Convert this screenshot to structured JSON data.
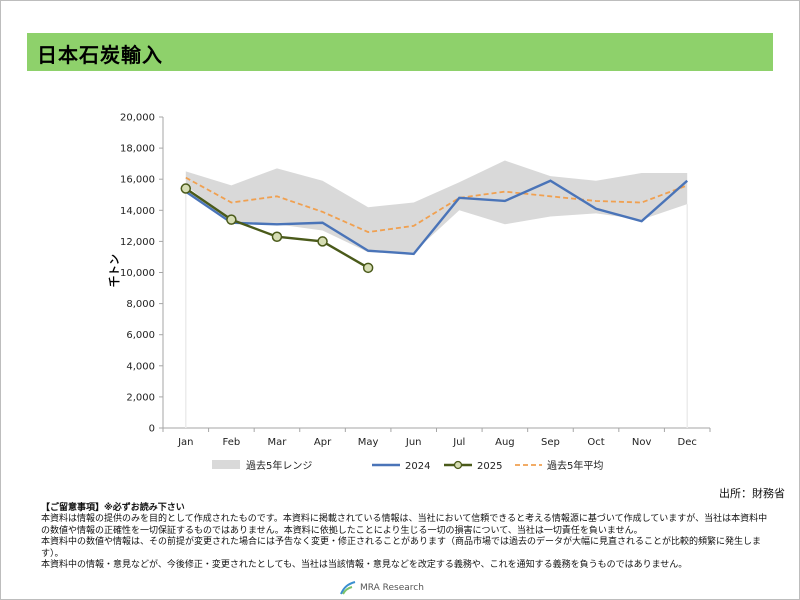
{
  "header": {
    "title": "日本石炭輸入"
  },
  "chart_data": {
    "type": "line",
    "title": "",
    "xlabel": "",
    "ylabel": "千トン",
    "ylim": [
      0,
      20000
    ],
    "yticks": [
      0,
      2000,
      4000,
      6000,
      8000,
      10000,
      12000,
      14000,
      16000,
      18000,
      20000
    ],
    "ytick_labels": [
      "0",
      "2,000",
      "4,000",
      "6,000",
      "8,000",
      "10,000",
      "12,000",
      "14,000",
      "16,000",
      "18,000",
      "20,000"
    ],
    "categories": [
      "Jan",
      "Feb",
      "Mar",
      "Apr",
      "May",
      "Jun",
      "Jul",
      "Aug",
      "Sep",
      "Oct",
      "Nov",
      "Dec"
    ],
    "series": [
      {
        "name": "過去5年レンジ",
        "kind": "range",
        "color": "#d9d9d9",
        "low": [
          15600,
          13300,
          13100,
          12700,
          11300,
          11300,
          14000,
          13100,
          13600,
          13800,
          13400,
          14400
        ],
        "high": [
          16500,
          15600,
          16700,
          15900,
          14200,
          14500,
          15800,
          17200,
          16200,
          15900,
          16400,
          16400
        ]
      },
      {
        "name": "2024",
        "kind": "line",
        "color": "#4a74b8",
        "values": [
          15200,
          13200,
          13100,
          13200,
          11400,
          11200,
          14800,
          14600,
          15900,
          14100,
          13300,
          15900
        ]
      },
      {
        "name": "2025",
        "kind": "line-marker",
        "color": "#4a5a1a",
        "marker_fill": "#d6ddb4",
        "values": [
          15400,
          13400,
          12300,
          12000,
          10300,
          null,
          null,
          null,
          null,
          null,
          null,
          null
        ]
      },
      {
        "name": "過去5年平均",
        "kind": "dashed",
        "color": "#f0a050",
        "values": [
          16100,
          14500,
          14900,
          13900,
          12600,
          13000,
          14800,
          15200,
          14900,
          14600,
          14500,
          15600
        ]
      }
    ],
    "legend_position": "bottom",
    "grid": false
  },
  "source": "出所：財務省",
  "notes": {
    "heading": "【ご留意事項】※必ずお読み下さい",
    "lines": [
      "本資料は情報の提供のみを目的として作成されたものです。本資料に掲載されている情報は、当社において信頼できると考える情報源に基づいて作成していますが、当社は本資料中の数値や情報の正確性を一切保証するものではありません。本資料に依拠したことにより生じる一切の損害について、当社は一切責任を負いません。",
      "本資料中の数値や情報は、その前提が変更された場合には予告なく変更・修正されることがあります（商品市場では過去のデータが大幅に見直されることが比較的頻繁に発生します）。",
      "本資料中の情報・意見などが、今後修正・変更されたとしても、当社は当該情報・意見などを改定する義務や、これを通知する義務を負うものではありません。"
    ]
  },
  "logo": {
    "text": "MRA Research"
  }
}
